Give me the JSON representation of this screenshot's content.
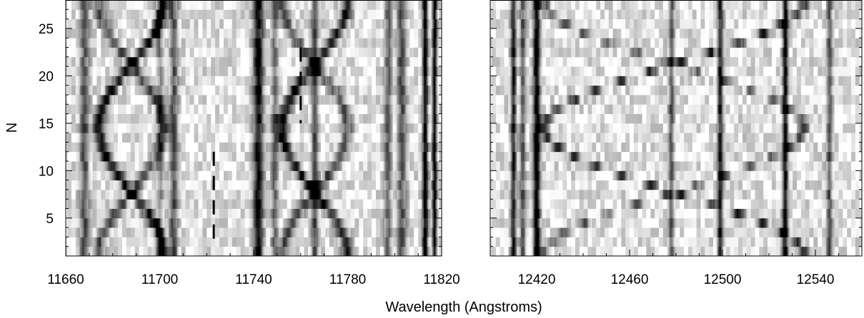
{
  "chart_data": {
    "type": "heatmap",
    "colormap": "grayscale (white = continuum, black = absorption)",
    "ylabel": "N",
    "xlabel": "Wavelength (Angstroms)",
    "y": {
      "range": [
        1,
        28
      ],
      "ticks": [
        5,
        10,
        15,
        20,
        25
      ],
      "rows": 27
    },
    "panels": [
      {
        "name": "left",
        "xlim": [
          11660,
          11820
        ],
        "xticks": [
          11660,
          11700,
          11740,
          11780,
          11820
        ],
        "static_lines": [
          {
            "wl": 11668,
            "depth": 0.55,
            "width": 2.0
          },
          {
            "wl": 11700,
            "depth": 0.35,
            "width": 1.5
          },
          {
            "wl": 11706,
            "depth": 0.55,
            "width": 1.8
          },
          {
            "wl": 11742,
            "depth": 0.85,
            "width": 2.2
          },
          {
            "wl": 11749,
            "depth": 0.45,
            "width": 1.5
          },
          {
            "wl": 11766,
            "depth": 0.6,
            "width": 1.5
          },
          {
            "wl": 11797,
            "depth": 0.5,
            "width": 1.5
          },
          {
            "wl": 11803,
            "depth": 0.55,
            "width": 2.0
          },
          {
            "wl": 11813,
            "depth": 0.95,
            "width": 1.2
          },
          {
            "wl": 11817,
            "depth": 0.9,
            "width": 1.0
          }
        ],
        "trails": [
          {
            "center": 11688,
            "amplitude": 14,
            "phase": 0,
            "depth": 0.8
          },
          {
            "center": 11766,
            "amplitude": 14,
            "phase": 0,
            "depth": 0.8
          },
          {
            "center": 11688,
            "amplitude": 14,
            "phase": 3.14159,
            "depth": 0.55
          },
          {
            "center": 11766,
            "amplitude": 14,
            "phase": 3.14159,
            "depth": 0.55
          }
        ],
        "dashes": [
          {
            "wl": 11723,
            "n_from": 2,
            "n_to": 12
          },
          {
            "wl": 11760,
            "n_from": 15,
            "n_to": 23
          }
        ]
      },
      {
        "name": "right",
        "xlim": [
          12400,
          12560
        ],
        "xticks": [
          12420,
          12460,
          12500,
          12540
        ],
        "static_lines": [
          {
            "wl": 12410,
            "depth": 0.75,
            "width": 1.2
          },
          {
            "wl": 12414,
            "depth": 0.55,
            "width": 1.2
          },
          {
            "wl": 12420,
            "depth": 0.95,
            "width": 1.5
          },
          {
            "wl": 12478,
            "depth": 0.55,
            "width": 1.2
          },
          {
            "wl": 12499,
            "depth": 0.75,
            "width": 1.2
          },
          {
            "wl": 12527,
            "depth": 0.85,
            "width": 1.2
          },
          {
            "wl": 12546,
            "depth": 0.55,
            "width": 1.2
          }
        ],
        "trails": [
          {
            "center": 12479,
            "amplitude": 56,
            "phase": 0,
            "depth": 0.7
          },
          {
            "center": 12479,
            "amplitude": 56,
            "phase": 3.14159,
            "depth": 0.5
          }
        ],
        "dashes": []
      }
    ]
  }
}
